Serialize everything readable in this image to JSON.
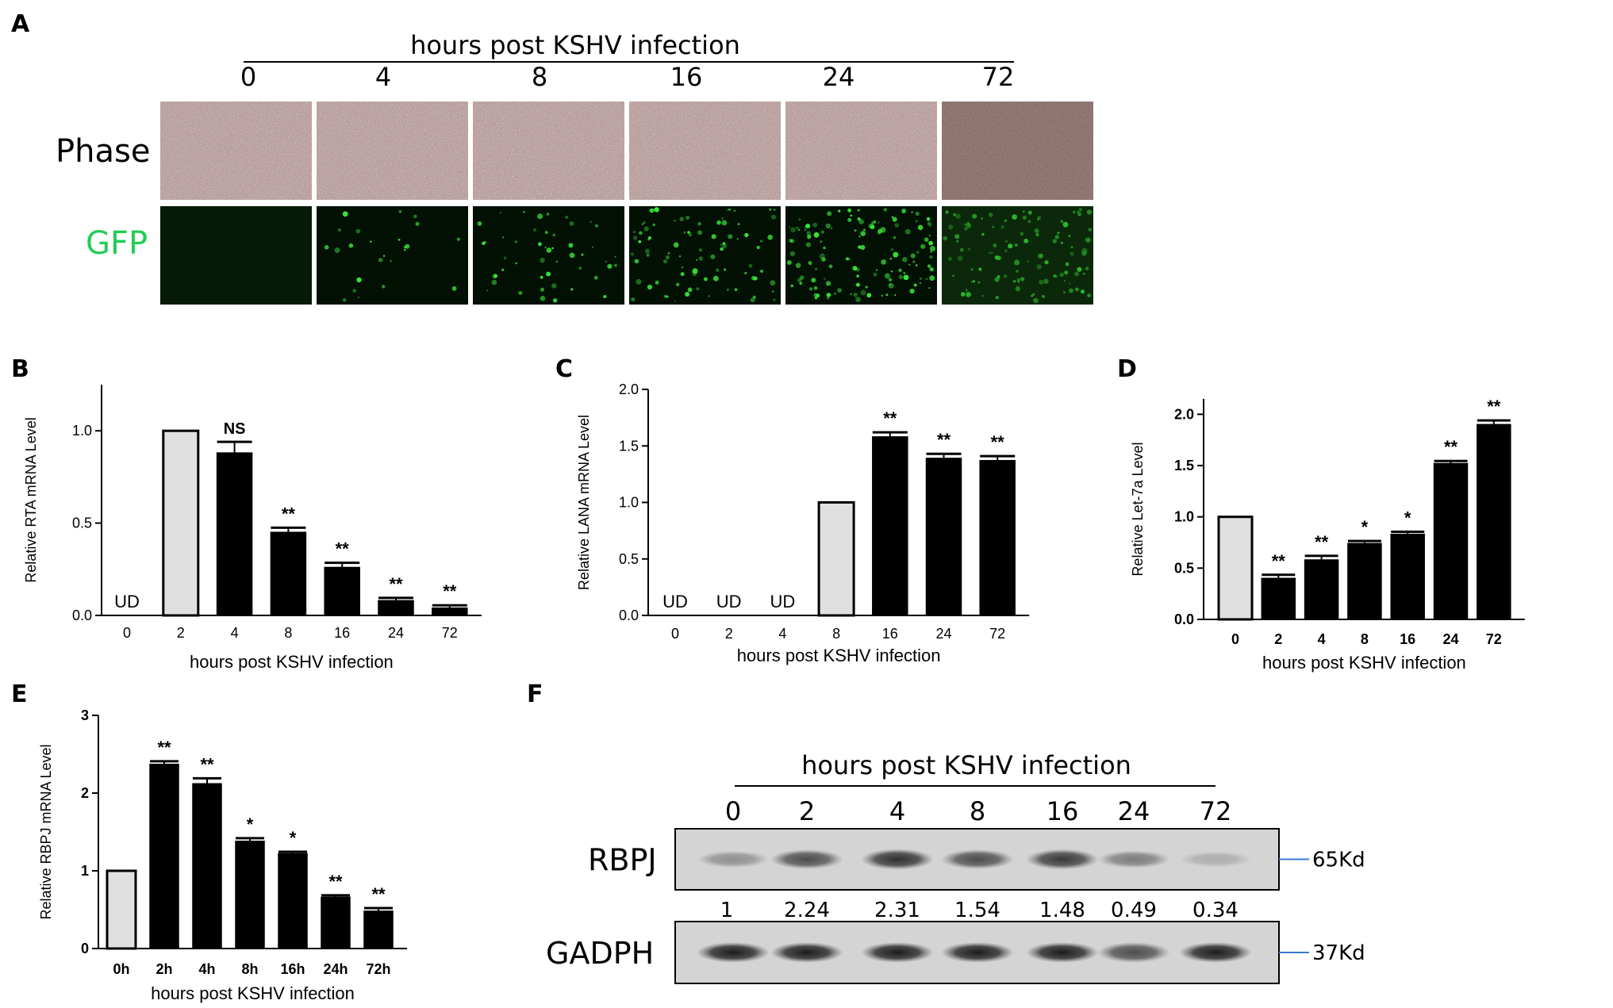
{
  "colors": {
    "bar_control": "#e0e0e0",
    "bar_treated": "#000000",
    "gfp_label": "#22cc55",
    "marker_line": "#3a78d6"
  },
  "panel_a": {
    "label": "A",
    "title": "hours post KSHV infection",
    "timepoints": [
      "0",
      "4",
      "8",
      "16",
      "24",
      "72"
    ],
    "row_labels": {
      "phase": "Phase",
      "gfp": "GFP"
    },
    "gfp_intensity": [
      0.0,
      0.15,
      0.3,
      0.55,
      0.85,
      0.7
    ]
  },
  "panel_f": {
    "label": "F",
    "title": "hours post KSHV infection",
    "lanes": [
      "0",
      "2",
      "4",
      "8",
      "16",
      "24",
      "72"
    ],
    "blots": [
      {
        "name": "RBPJ",
        "marker": "65Kd"
      },
      {
        "name": "GADPH",
        "marker": "37Kd"
      }
    ],
    "quant": [
      "1",
      "2.24",
      "2.31",
      "1.54",
      "1.48",
      "0.49",
      "0.34"
    ]
  },
  "chart_data": [
    {
      "panel": "B",
      "type": "bar",
      "ylabel": "Relative RTA mRNA Level",
      "xlabel": "hours post KSHV infection",
      "categories": [
        "0",
        "2",
        "4",
        "8",
        "16",
        "24",
        "72"
      ],
      "values": [
        null,
        1.0,
        0.88,
        0.45,
        0.26,
        0.08,
        0.04
      ],
      "errors": [
        null,
        0,
        0.06,
        0.025,
        0.025,
        0.015,
        0.015
      ],
      "annotations": [
        "UD",
        "",
        "NS",
        "**",
        "**",
        "**",
        "**"
      ],
      "ylim": [
        0,
        1.25
      ],
      "yticks": [
        "0.0",
        "0.5",
        "1.0"
      ],
      "control_index": 1
    },
    {
      "panel": "C",
      "type": "bar",
      "ylabel": "Relative LANA mRNA Level",
      "xlabel": "hours post KSHV infection",
      "categories": [
        "0",
        "2",
        "4",
        "8",
        "16",
        "24",
        "72"
      ],
      "values": [
        null,
        null,
        null,
        1.0,
        1.58,
        1.39,
        1.37
      ],
      "errors": [
        null,
        null,
        null,
        0,
        0.04,
        0.04,
        0.04
      ],
      "annotations": [
        "UD",
        "UD",
        "UD",
        "",
        "**",
        "**",
        "**"
      ],
      "ylim": [
        0,
        2.0
      ],
      "yticks": [
        "0.0",
        "0.5",
        "1.0",
        "1.5",
        "2.0"
      ],
      "control_index": 3
    },
    {
      "panel": "D",
      "type": "bar",
      "ylabel": "Relative Let-7a Level",
      "xlabel": "hours post KSHV infection",
      "categories": [
        "0",
        "2",
        "4",
        "8",
        "16",
        "24",
        "72"
      ],
      "values": [
        1.0,
        0.4,
        0.58,
        0.74,
        0.83,
        1.52,
        1.9
      ],
      "errors": [
        0,
        0.035,
        0.04,
        0.025,
        0.025,
        0.025,
        0.04
      ],
      "annotations": [
        "",
        "**",
        "**",
        "*",
        "*",
        "**",
        "**"
      ],
      "ylim": [
        0,
        2.15
      ],
      "yticks": [
        "0.0",
        "0.5",
        "1.0",
        "1.5",
        "2.0"
      ],
      "control_index": 0
    },
    {
      "panel": "E",
      "type": "bar",
      "ylabel": "Relative RBPJ mRNA Level",
      "xlabel": "hours post KSHV infection",
      "categories": [
        "0h",
        "2h",
        "4h",
        "8h",
        "16h",
        "24h",
        "72h"
      ],
      "values": [
        1.0,
        2.37,
        2.12,
        1.38,
        1.22,
        0.66,
        0.48
      ],
      "errors": [
        0,
        0.04,
        0.07,
        0.04,
        0.025,
        0.025,
        0.04
      ],
      "annotations": [
        "",
        "**",
        "**",
        "*",
        "*",
        "**",
        "**"
      ],
      "ylim": [
        0,
        3
      ],
      "yticks": [
        "0",
        "1",
        "2",
        "3"
      ],
      "control_index": 0
    }
  ]
}
